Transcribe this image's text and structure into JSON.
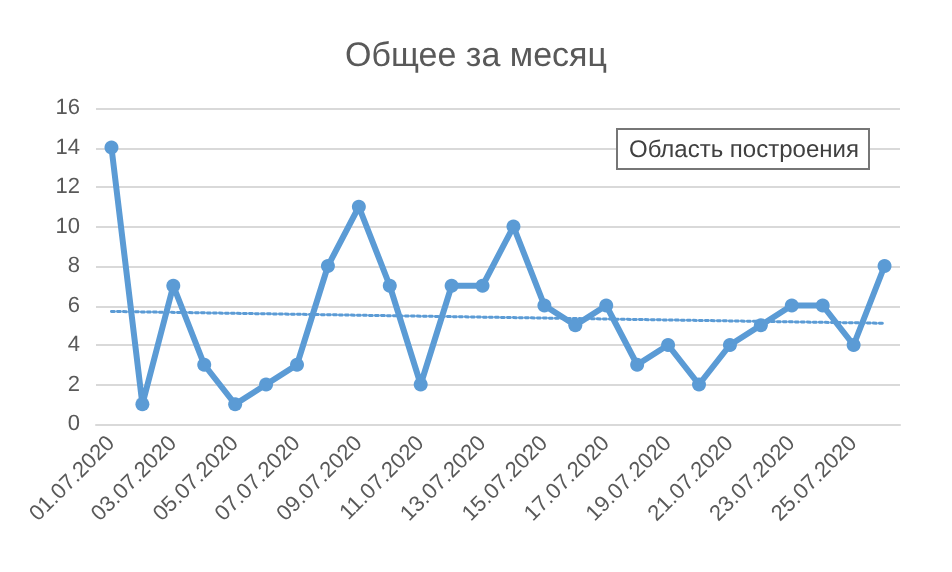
{
  "chart_data": {
    "type": "line",
    "title": "Общее за месяц",
    "categories": [
      "01.07.2020",
      null,
      "03.07.2020",
      null,
      "05.07.2020",
      null,
      "07.07.2020",
      null,
      "09.07.2020",
      null,
      "11.07.2020",
      null,
      "13.07.2020",
      null,
      "15.07.2020",
      null,
      "17.07.2020",
      null,
      "19.07.2020",
      null,
      "21.07.2020",
      null,
      "23.07.2020",
      null,
      "25.07.2020",
      null
    ],
    "series": [
      {
        "color": "#5b9bd5",
        "marker": "circle",
        "line_style": "solid",
        "values": [
          14,
          1,
          7,
          3,
          1,
          2,
          3,
          8,
          11,
          7,
          2,
          7,
          7,
          10,
          6,
          5,
          6,
          3,
          4,
          2,
          4,
          5,
          6,
          6,
          4,
          8
        ]
      },
      {
        "color": "#5b9bd5",
        "marker": "none",
        "line_style": "dotted",
        "values": [
          5.7,
          null,
          null,
          null,
          null,
          null,
          null,
          null,
          null,
          null,
          null,
          null,
          null,
          null,
          null,
          null,
          null,
          null,
          null,
          null,
          null,
          null,
          null,
          null,
          null,
          5.1
        ]
      }
    ],
    "ylim": [
      0,
      16
    ],
    "yticks": [
      0,
      2,
      4,
      6,
      8,
      10,
      12,
      14,
      16
    ],
    "grid": "y",
    "annotations": [
      "Область построения"
    ]
  }
}
